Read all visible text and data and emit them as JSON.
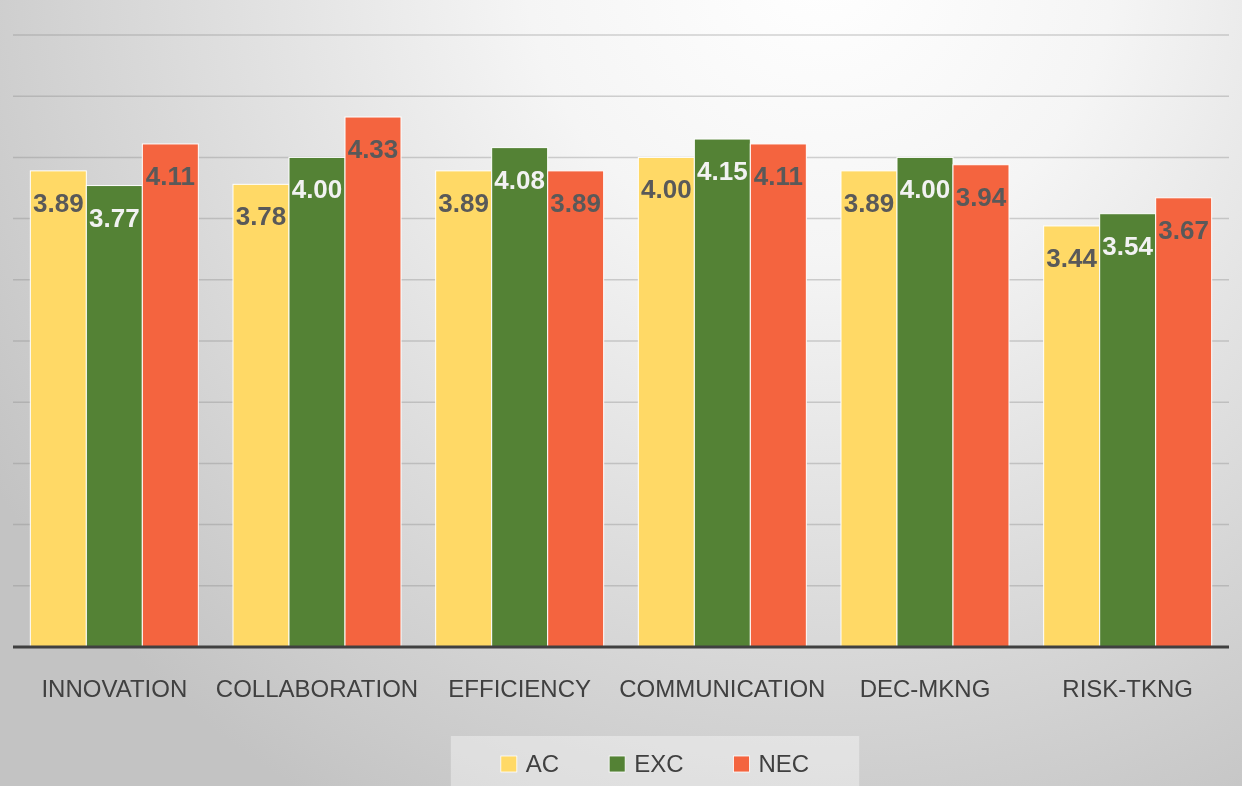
{
  "chart_data": {
    "type": "bar",
    "categories": [
      "INNOVATION",
      "COLLABORATION",
      "EFFICIENCY",
      "COMMUNICATION",
      "DEC-MKNG",
      "RISK-TKNG"
    ],
    "series": [
      {
        "name": "AC",
        "color": "#ffd966",
        "values": [
          3.89,
          3.78,
          3.89,
          4.0,
          3.89,
          3.44
        ],
        "value_labels": [
          "3.89",
          "3.78",
          "3.89",
          "4.00",
          "3.89",
          "3.44"
        ]
      },
      {
        "name": "EXC",
        "color": "#548235",
        "values": [
          3.77,
          4.0,
          4.08,
          4.15,
          4.0,
          3.54
        ],
        "value_labels": [
          "3.77",
          "4.00",
          "4.08",
          "4.15",
          "4.00",
          "3.54"
        ]
      },
      {
        "name": "NEC",
        "color": "#f4643f",
        "values": [
          4.11,
          4.33,
          3.89,
          4.11,
          3.94,
          3.67
        ],
        "value_labels": [
          "4.11",
          "4.33",
          "3.89",
          "4.11",
          "3.94",
          "3.67"
        ]
      }
    ],
    "ylim": [
      0,
      5
    ],
    "yticks": [
      {
        "value": 0,
        "label": null
      },
      {
        "value": 0.5,
        "label": null
      },
      {
        "value": 1,
        "label": null
      },
      {
        "value": 1.5,
        "label": null
      },
      {
        "value": 2,
        "label": null
      },
      {
        "value": 2.5,
        "label": null
      },
      {
        "value": 3,
        "label": null
      },
      {
        "value": 3.5,
        "label": null
      },
      {
        "value": 4,
        "label": null
      },
      {
        "value": 4.5,
        "label": null
      },
      {
        "value": 5,
        "label": null
      }
    ],
    "grid": "y",
    "legend": "bottom",
    "tick_labels": "x"
  }
}
